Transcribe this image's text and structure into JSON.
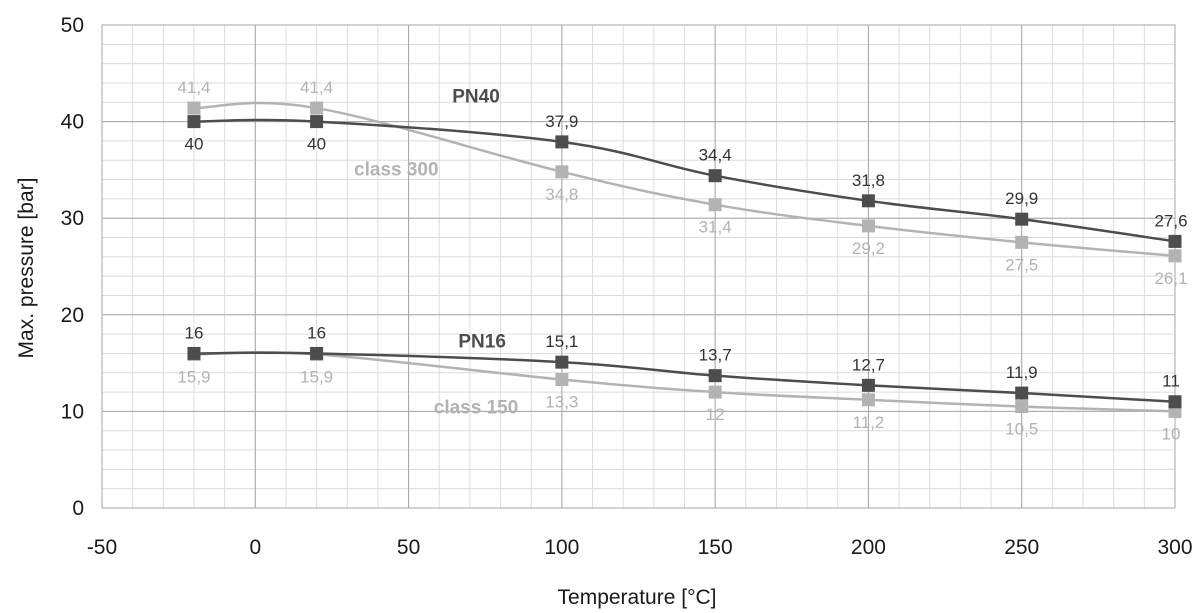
{
  "chart_data": {
    "type": "line",
    "title": "",
    "xlabel": "Temperature [°C]",
    "ylabel": "Max. pressure [bar]",
    "xlim": [
      -50,
      300
    ],
    "ylim": [
      0,
      50
    ],
    "x_ticks": [
      "-50",
      "0",
      "50",
      "100",
      "150",
      "200",
      "250",
      "300"
    ],
    "y_ticks": [
      "0",
      "10",
      "20",
      "30",
      "40",
      "50"
    ],
    "grid": true,
    "legend": "inline labels",
    "series": [
      {
        "name": "PN40",
        "color": "#4d4d4d",
        "x": [
          -20,
          20,
          100,
          150,
          200,
          250,
          300
        ],
        "y": [
          40,
          40,
          37.9,
          34.4,
          31.8,
          29.9,
          27.6
        ],
        "labels": [
          "40",
          "40",
          "37,9",
          "34,4",
          "31,8",
          "29,9",
          "27,6"
        ],
        "label_side": [
          "below",
          "below",
          "above",
          "above",
          "above",
          "above",
          "above"
        ]
      },
      {
        "name": "class 300",
        "color": "#b3b3b3",
        "x": [
          -20,
          20,
          100,
          150,
          200,
          250,
          300
        ],
        "y": [
          41.4,
          41.4,
          34.8,
          31.4,
          29.2,
          27.5,
          26.1
        ],
        "labels": [
          "41,4",
          "41,4",
          "34,8",
          "31,4",
          "29,2",
          "27,5",
          "26,1"
        ],
        "label_side": [
          "above",
          "above",
          "below",
          "below",
          "below",
          "below",
          "below"
        ]
      },
      {
        "name": "PN16",
        "color": "#4d4d4d",
        "x": [
          -20,
          20,
          100,
          150,
          200,
          250,
          300
        ],
        "y": [
          16,
          16,
          15.1,
          13.7,
          12.7,
          11.9,
          11
        ],
        "labels": [
          "16",
          "16",
          "15,1",
          "13,7",
          "12,7",
          "11,9",
          "11"
        ],
        "label_side": [
          "above",
          "above",
          "above",
          "above",
          "above",
          "above",
          "above"
        ]
      },
      {
        "name": "class 150",
        "color": "#b3b3b3",
        "x": [
          -20,
          20,
          100,
          150,
          200,
          250,
          300
        ],
        "y": [
          15.9,
          15.9,
          13.3,
          12,
          11.2,
          10.5,
          10
        ],
        "labels": [
          "15,9",
          "15,9",
          "13,3",
          "12",
          "11,2",
          "10,5",
          "10"
        ],
        "label_side": [
          "below",
          "below",
          "below",
          "below",
          "below",
          "below",
          "below"
        ]
      }
    ],
    "annotations": [
      {
        "text": "PN40",
        "x": 72,
        "y": 42,
        "color": "#4d4d4d"
      },
      {
        "text": "class 300",
        "x": 46,
        "y": 34.4,
        "color": "#b3b3b3"
      },
      {
        "text": "PN16",
        "x": 74,
        "y": 16.6,
        "color": "#4d4d4d"
      },
      {
        "text": "class 150",
        "x": 72,
        "y": 9.8,
        "color": "#b3b3b3"
      }
    ]
  }
}
